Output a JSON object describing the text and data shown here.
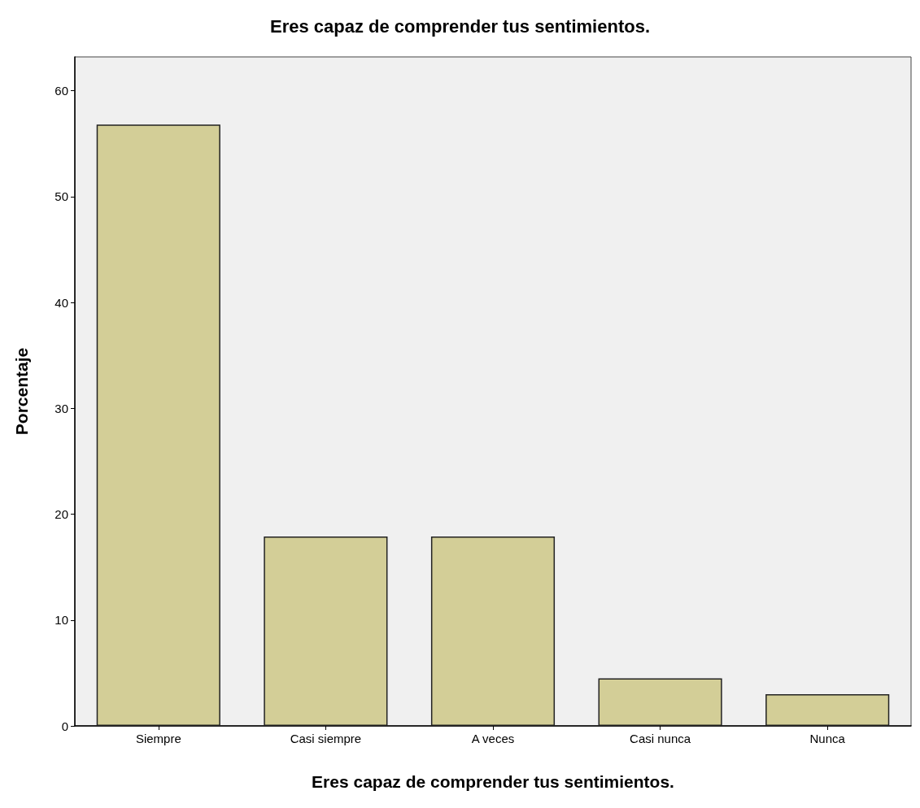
{
  "chart_data": {
    "type": "bar",
    "title": "Eres capaz de comprender tus sentimientos.",
    "xlabel": "Eres capaz de comprender tus sentimientos.",
    "ylabel": "Porcentaje",
    "categories": [
      "Siempre",
      "Casi siempre",
      "A veces",
      "Casi nunca",
      "Nunca"
    ],
    "values": [
      56.8,
      17.9,
      17.9,
      4.5,
      3.0
    ],
    "color": "#d3ce97",
    "ylim": [
      0,
      63.2
    ],
    "yticks": [
      0,
      10,
      20,
      30,
      40,
      50,
      60
    ],
    "grid": false
  }
}
